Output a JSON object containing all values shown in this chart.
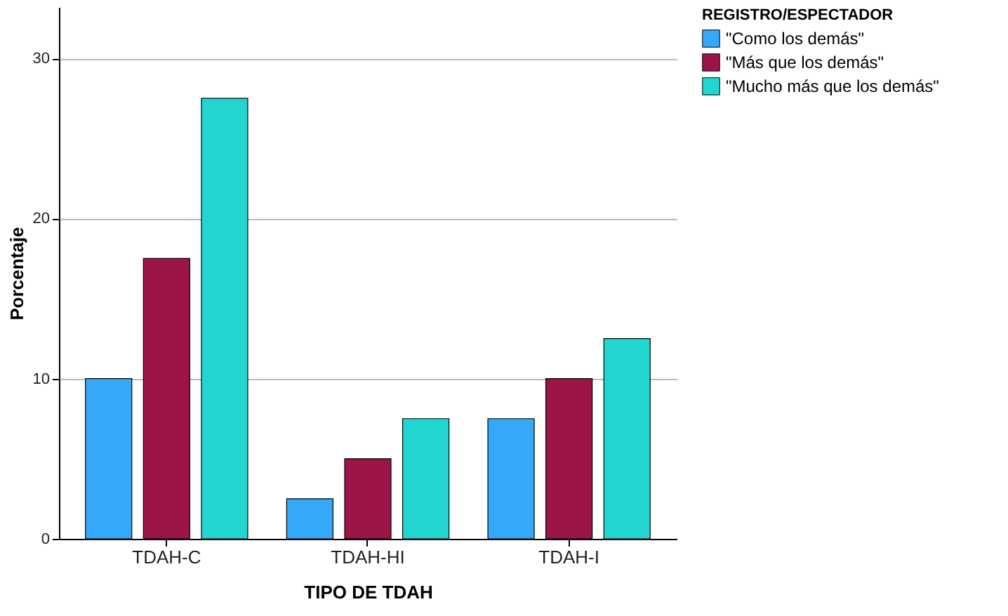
{
  "chart_data": {
    "type": "bar",
    "xlabel": "TIPO DE TDAH",
    "ylabel": "Porcentaje",
    "legend_title": "REGISTRO/ESPECTADOR",
    "categories": [
      "TDAH-C",
      "TDAH-HI",
      "TDAH-I"
    ],
    "series": [
      {
        "name": "\"Como los demás\"",
        "color": "#35a8f8",
        "values": [
          10,
          2.5,
          7.5
        ]
      },
      {
        "name": "\"Más que los demás\"",
        "color": "#9b1549",
        "values": [
          17.5,
          5,
          10
        ]
      },
      {
        "name": "\"Mucho más que los demás\"",
        "color": "#22d6d0",
        "values": [
          27.5,
          7.5,
          12.5
        ]
      }
    ],
    "ylim": [
      0,
      33.2
    ],
    "yticks": [
      0,
      10,
      20,
      30
    ],
    "grid": "y",
    "legend": "top right"
  }
}
